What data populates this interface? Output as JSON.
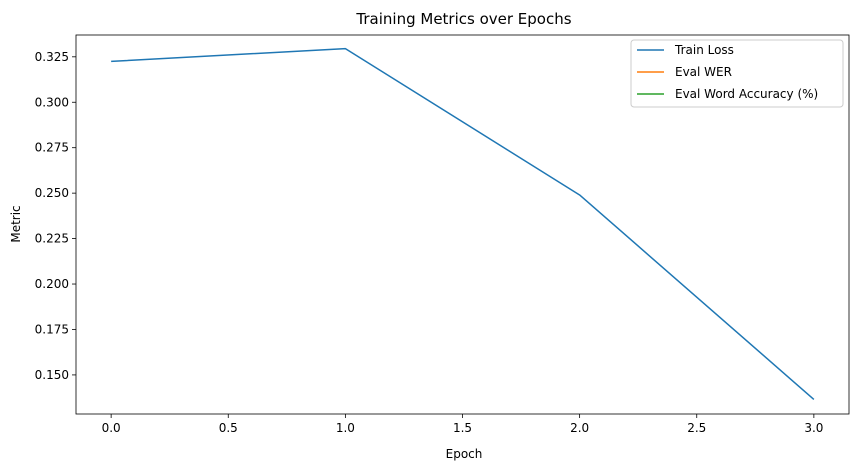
{
  "chart_data": {
    "type": "line",
    "title": "Training Metrics over Epochs",
    "xlabel": "Epoch",
    "ylabel": "Metric",
    "xlim": [
      -0.15,
      3.15
    ],
    "ylim": [
      0.1285,
      0.337
    ],
    "x_ticks": [
      "0.0",
      "0.5",
      "1.0",
      "1.5",
      "2.0",
      "2.5",
      "3.0"
    ],
    "x_tick_values": [
      0.0,
      0.5,
      1.0,
      1.5,
      2.0,
      2.5,
      3.0
    ],
    "y_ticks": [
      "0.150",
      "0.175",
      "0.200",
      "0.225",
      "0.250",
      "0.275",
      "0.300",
      "0.325"
    ],
    "y_tick_values": [
      0.15,
      0.175,
      0.2,
      0.225,
      0.25,
      0.275,
      0.3,
      0.325
    ],
    "grid": false,
    "legend_position": "top-right",
    "series": [
      {
        "name": "Train Loss",
        "color": "#1f77b4",
        "x": [
          0,
          1,
          2,
          3
        ],
        "y": [
          0.3225,
          0.3295,
          0.249,
          0.1365
        ]
      },
      {
        "name": "Eval WER",
        "color": "#ff7f0e",
        "x": [],
        "y": []
      },
      {
        "name": "Eval Word Accuracy (%)",
        "color": "#2ca02c",
        "x": [],
        "y": []
      }
    ]
  }
}
